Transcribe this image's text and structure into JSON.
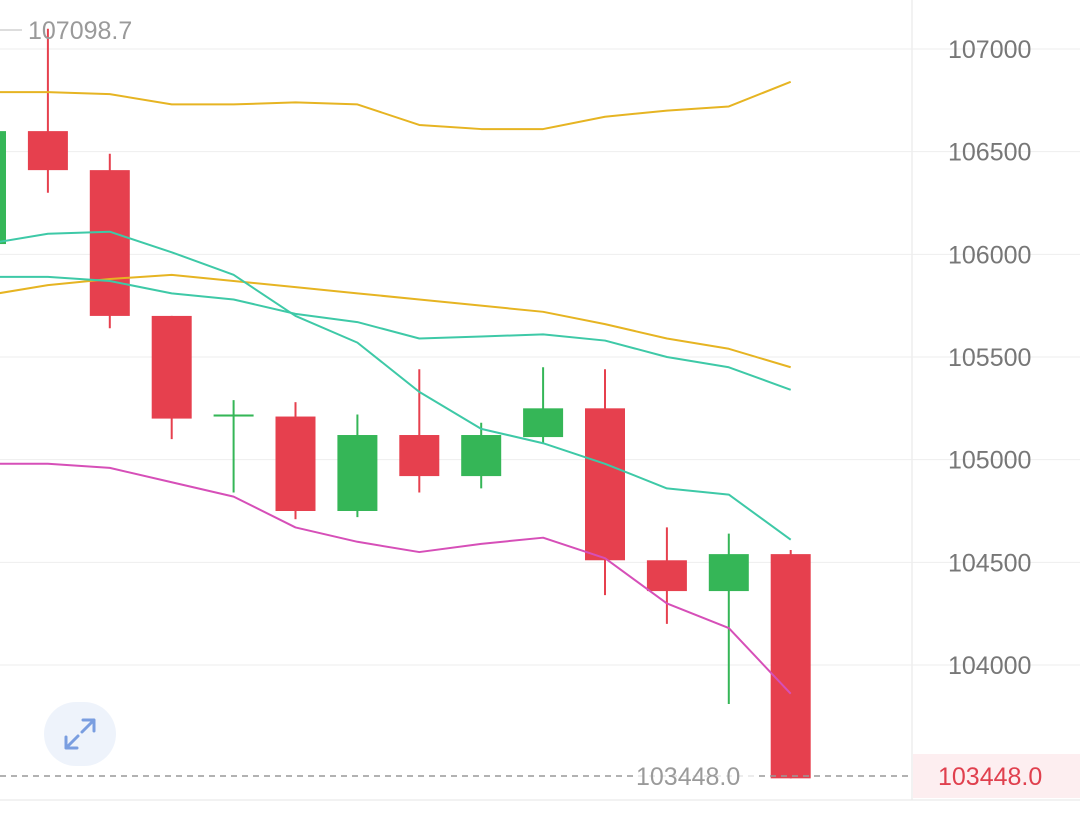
{
  "chart_data": {
    "type": "candlestick",
    "y_range": [
      103350,
      107600
    ],
    "y_ticks": [
      104000,
      104500,
      105000,
      105500,
      106000,
      106500,
      107000
    ],
    "y_tick_labels": [
      "104000",
      "104500",
      "105000",
      "105500",
      "106000",
      "106500",
      "107000"
    ],
    "x_tick_labels": [
      "",
      "",
      ""
    ],
    "high_label": "107098.7",
    "current_price_label": "103448.0",
    "current_price": 103448.0,
    "candles": [
      {
        "open": 106050,
        "high": 106600,
        "low": 106050,
        "close": 106600
      },
      {
        "open": 106600,
        "high": 107098.7,
        "low": 106300,
        "close": 106410
      },
      {
        "open": 106410,
        "high": 106490,
        "low": 105640,
        "close": 105700
      },
      {
        "open": 105700,
        "high": 105700,
        "low": 105100,
        "close": 105200
      },
      {
        "open": 105210,
        "high": 105290,
        "low": 104840,
        "close": 105220
      },
      {
        "open": 105210,
        "high": 105280,
        "low": 104710,
        "close": 104750
      },
      {
        "open": 104750,
        "high": 105220,
        "low": 104720,
        "close": 105120
      },
      {
        "open": 105120,
        "high": 105440,
        "low": 104840,
        "close": 104920
      },
      {
        "open": 104920,
        "high": 105180,
        "low": 104860,
        "close": 105120
      },
      {
        "open": 105110,
        "high": 105450,
        "low": 105080,
        "close": 105250
      },
      {
        "open": 105250,
        "high": 105440,
        "low": 104340,
        "close": 104510
      },
      {
        "open": 104510,
        "high": 104670,
        "low": 104200,
        "close": 104360
      },
      {
        "open": 104360,
        "high": 104640,
        "low": 103810,
        "close": 104540
      },
      {
        "open": 104540,
        "high": 104560,
        "low": 103448,
        "close": 103448
      }
    ],
    "series": [
      {
        "color": "#e6b422",
        "values": [
          106790,
          106790,
          106780,
          106730,
          106730,
          106740,
          106730,
          106630,
          106610,
          106610,
          106670,
          106700,
          106720,
          106840
        ]
      },
      {
        "color": "#e6b422",
        "values": [
          105800,
          105850,
          105880,
          105900,
          105870,
          105840,
          105810,
          105780,
          105750,
          105720,
          105660,
          105590,
          105540,
          105450
        ]
      },
      {
        "color": "#3ec9a7",
        "values": [
          106050,
          106100,
          106110,
          106010,
          105900,
          105700,
          105570,
          105330,
          105150,
          105080,
          104980,
          104860,
          104830,
          104610
        ]
      },
      {
        "color": "#3ec9a7",
        "values": [
          105890,
          105890,
          105870,
          105810,
          105780,
          105710,
          105670,
          105590,
          105600,
          105610,
          105580,
          105500,
          105450,
          105340
        ]
      },
      {
        "color": "#d64fb8",
        "values": [
          104980,
          104980,
          104960,
          104890,
          104820,
          104670,
          104600,
          104550,
          104590,
          104620,
          104520,
          104300,
          104180,
          103860
        ]
      }
    ],
    "colors": {
      "up": "#35b657",
      "down": "#e6404e",
      "grid": "#eeeeee",
      "axis_text": "#777777",
      "current": "#e0404e"
    }
  },
  "controls": {
    "expand_icon": "expand-arrows-icon"
  }
}
